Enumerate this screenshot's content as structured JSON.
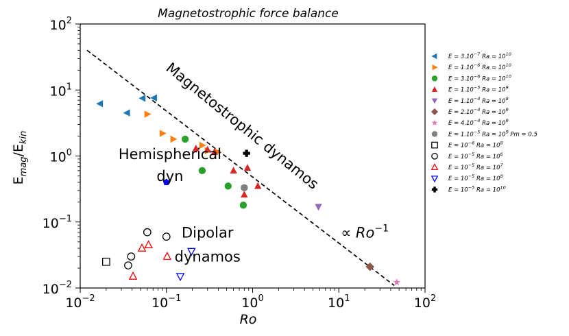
{
  "chart_data": {
    "type": "scatter",
    "title": "Magnetostrophic force balance",
    "xlabel": "Ro",
    "ylabel": "E_mag/E_kin",
    "xscale": "log",
    "yscale": "log",
    "xlim": [
      0.01,
      100
    ],
    "ylim": [
      0.01,
      100
    ],
    "xticks": [
      0.01,
      0.1,
      1,
      10,
      100
    ],
    "xtick_labels": [
      "10^-2",
      "10^-1",
      "10^0",
      "10^1",
      "10^2"
    ],
    "yticks": [
      0.01,
      0.1,
      1,
      10,
      100
    ],
    "ytick_labels": [
      "10^-2",
      "10^-1",
      "10^0",
      "10^1",
      "10^2"
    ],
    "annotations": [
      {
        "text": "Magnetostrophic dynamos",
        "x": 0.7,
        "y": 2.5,
        "rotation": 39
      },
      {
        "text": "Hemispherical",
        "x": 0.11,
        "y": 0.9
      },
      {
        "text": "dyn",
        "x": 0.11,
        "y": 0.42
      },
      {
        "text": "Dipolar",
        "x": 0.3,
        "y": 0.058
      },
      {
        "text": "dynamos",
        "x": 0.3,
        "y": 0.025
      },
      {
        "text": "∝ Ro^-1",
        "x": 20,
        "y": 0.058
      }
    ],
    "reference_line": {
      "label": "∝ Ro^-1",
      "x": [
        0.012,
        44
      ],
      "y": [
        40,
        0.0109
      ],
      "style": "dashed"
    },
    "series": [
      {
        "name": "E=3.10^-7 Ra=10^10",
        "marker": "triangle-left",
        "filled": true,
        "color": "#1f77b4",
        "x": [
          0.017,
          0.035,
          0.053,
          0.072
        ],
        "y": [
          6.2,
          4.5,
          7.5,
          7.6
        ]
      },
      {
        "name": "E=1.10^-6 Ra=10^10",
        "marker": "triangle-right",
        "filled": true,
        "color": "#ff7f0e",
        "x": [
          0.06,
          0.09,
          0.12,
          0.26,
          0.3,
          0.39
        ],
        "y": [
          4.3,
          2.2,
          1.8,
          1.45,
          1.2,
          1.15
        ]
      },
      {
        "name": "E=3.10^-6 Ra=10^10",
        "marker": "circle",
        "filled": true,
        "color": "#2ca02c",
        "x": [
          0.165,
          0.26,
          0.52,
          0.78
        ],
        "y": [
          1.8,
          0.6,
          0.35,
          0.18
        ]
      },
      {
        "name": "E=1.10^-5 Ra=10^9",
        "marker": "triangle-up",
        "filled": true,
        "color": "#d62728",
        "x": [
          0.22,
          0.3,
          0.36,
          0.6,
          0.8,
          0.87,
          1.15
        ],
        "y": [
          1.3,
          1.25,
          1.15,
          0.6,
          0.26,
          0.66,
          0.35
        ]
      },
      {
        "name": "E=1.10^-4 Ra=10^8",
        "marker": "triangle-down",
        "filled": true,
        "color": "#9467bd",
        "x": [
          5.8
        ],
        "y": [
          0.17
        ]
      },
      {
        "name": "E=2.10^-4 Ra=10^9",
        "marker": "diamond",
        "filled": true,
        "color": "#8c564b",
        "x": [
          23
        ],
        "y": [
          0.021
        ]
      },
      {
        "name": "E=4.10^-4 Ra=10^9",
        "marker": "star",
        "filled": true,
        "color": "#e377c2",
        "x": [
          47
        ],
        "y": [
          0.0122
        ]
      },
      {
        "name": "E=1.10^-5 Ra=10^9 Pm=0.5",
        "marker": "circle",
        "filled": true,
        "color": "#7f7f7f",
        "x": [
          0.8
        ],
        "y": [
          0.33
        ]
      },
      {
        "name": "E=10^-6 Ra=10^8",
        "marker": "square",
        "filled": false,
        "color": "#000000",
        "x": [
          0.02
        ],
        "y": [
          0.025
        ]
      },
      {
        "name": "E=10^-5 Ra=10^6",
        "marker": "circle",
        "filled": false,
        "color": "#000000",
        "x": [
          0.036,
          0.039,
          0.06,
          0.1
        ],
        "y": [
          0.022,
          0.03,
          0.07,
          0.06
        ]
      },
      {
        "name": "E=10^-5 Ra=10^7",
        "marker": "triangle-up",
        "filled": false,
        "color": "#ff0000",
        "x": [
          0.041,
          0.052,
          0.062,
          0.102
        ],
        "y": [
          0.015,
          0.04,
          0.045,
          0.03
        ]
      },
      {
        "name": "E=10^-5 Ra=10^8",
        "marker": "triangle-down",
        "filled": false,
        "color": "#0000ff",
        "x": [
          0.145,
          0.195
        ],
        "y": [
          0.015,
          0.036
        ]
      },
      {
        "name": "E=10^-5 Ra=10^10",
        "marker": "plus-bold",
        "filled": true,
        "color": "#000000",
        "x": [
          0.85
        ],
        "y": [
          1.1
        ]
      },
      {
        "name": "Hemispherical dyn",
        "marker": "pentagon",
        "filled": true,
        "color": "#0000ff",
        "in_legend": false,
        "x": [
          0.1
        ],
        "y": [
          0.4
        ]
      }
    ],
    "legend": {
      "placement": "right",
      "entries": [
        {
          "series": 0,
          "e": "E = 3.10",
          "e_exp": "−7",
          "ra": "Ra = 10",
          "ra_exp": "10",
          "extra": ""
        },
        {
          "series": 1,
          "e": "E = 1.10",
          "e_exp": "−6",
          "ra": "Ra = 10",
          "ra_exp": "10",
          "extra": ""
        },
        {
          "series": 2,
          "e": "E = 3.10",
          "e_exp": "−6",
          "ra": "Ra = 10",
          "ra_exp": "10",
          "extra": ""
        },
        {
          "series": 3,
          "e": "E = 1.10",
          "e_exp": "−5",
          "ra": "Ra = 10",
          "ra_exp": "9",
          "extra": ""
        },
        {
          "series": 4,
          "e": "E = 1.10",
          "e_exp": "−4",
          "ra": "Ra = 10",
          "ra_exp": "8",
          "extra": ""
        },
        {
          "series": 5,
          "e": "E = 2.10",
          "e_exp": "−4",
          "ra": "Ra = 10",
          "ra_exp": "9",
          "extra": ""
        },
        {
          "series": 6,
          "e": "E = 4.10",
          "e_exp": "−4",
          "ra": "Ra = 10",
          "ra_exp": "9",
          "extra": ""
        },
        {
          "series": 7,
          "e": "E = 1.10",
          "e_exp": "−5",
          "ra": "Ra = 10",
          "ra_exp": "9",
          "extra": "Pm = 0.5"
        },
        {
          "series": 8,
          "e": "E = 10",
          "e_exp": "−6",
          "ra": "Ra = 10",
          "ra_exp": "8",
          "extra": ""
        },
        {
          "series": 9,
          "e": "E = 10",
          "e_exp": "−5",
          "ra": "Ra = 10",
          "ra_exp": "6",
          "extra": ""
        },
        {
          "series": 10,
          "e": "E = 10",
          "e_exp": "−5",
          "ra": "Ra = 10",
          "ra_exp": "7",
          "extra": ""
        },
        {
          "series": 11,
          "e": "E = 10",
          "e_exp": "−5",
          "ra": "Ra = 10",
          "ra_exp": "8",
          "extra": ""
        },
        {
          "series": 12,
          "e": "E = 10",
          "e_exp": "−5",
          "ra": "Ra = 10",
          "ra_exp": "10",
          "extra": ""
        }
      ]
    }
  }
}
